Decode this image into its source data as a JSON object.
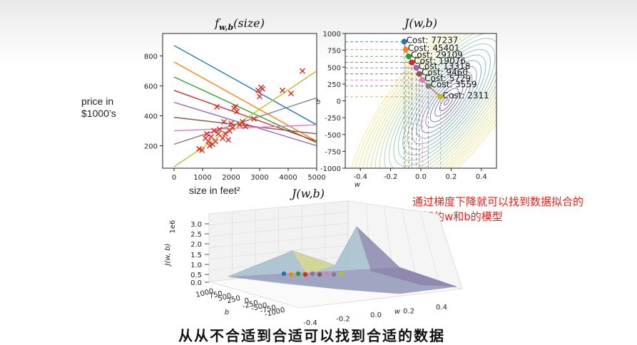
{
  "side_label": {
    "line1": "price in",
    "line2": "$1000’s"
  },
  "left_xlabel": "size in feet²",
  "note": {
    "line1": "通过梯度下降就可以找到数据拟合的",
    "line2": "最好的w和b的模型"
  },
  "bottom_text": "从从不合适到合适可以找到合适的数据",
  "chart_data": [
    {
      "type": "scatter",
      "title": "f_{w,b}(size)",
      "xlabel": "size in feet²",
      "ylabel": "price in $1000’s",
      "xlim": [
        -400,
        5000
      ],
      "ylim": [
        50,
        950
      ],
      "xticks": [
        "0",
        "1000",
        "2000",
        "3000",
        "4000",
        "5000"
      ],
      "yticks": [
        "200",
        "400",
        "600",
        "800"
      ],
      "points": [
        {
          "x": 880,
          "y": 180
        },
        {
          "x": 980,
          "y": 170
        },
        {
          "x": 1100,
          "y": 250
        },
        {
          "x": 1150,
          "y": 280
        },
        {
          "x": 1200,
          "y": 230
        },
        {
          "x": 1250,
          "y": 200
        },
        {
          "x": 1300,
          "y": 260
        },
        {
          "x": 1350,
          "y": 210
        },
        {
          "x": 1400,
          "y": 300
        },
        {
          "x": 1450,
          "y": 230
        },
        {
          "x": 1500,
          "y": 460
        },
        {
          "x": 1550,
          "y": 280
        },
        {
          "x": 1600,
          "y": 310
        },
        {
          "x": 1700,
          "y": 250
        },
        {
          "x": 1750,
          "y": 360
        },
        {
          "x": 1800,
          "y": 280
        },
        {
          "x": 1900,
          "y": 240
        },
        {
          "x": 1950,
          "y": 300
        },
        {
          "x": 2000,
          "y": 350
        },
        {
          "x": 2050,
          "y": 320
        },
        {
          "x": 2100,
          "y": 450
        },
        {
          "x": 2150,
          "y": 460
        },
        {
          "x": 2200,
          "y": 430
        },
        {
          "x": 2300,
          "y": 340
        },
        {
          "x": 2400,
          "y": 360
        },
        {
          "x": 2500,
          "y": 330
        },
        {
          "x": 2800,
          "y": 380
        },
        {
          "x": 2950,
          "y": 570
        },
        {
          "x": 3000,
          "y": 530
        },
        {
          "x": 3050,
          "y": 590
        },
        {
          "x": 3100,
          "y": 580
        },
        {
          "x": 3800,
          "y": 570
        },
        {
          "x": 4100,
          "y": 550
        },
        {
          "x": 4500,
          "y": 700
        }
      ],
      "lines": [
        {
          "color": "#1f77b4",
          "y0": 870,
          "y5000": 340
        },
        {
          "color": "#ff7f0e",
          "y0": 760,
          "y5000": 230
        },
        {
          "color": "#2ca02c",
          "y0": 660,
          "y5000": 220
        },
        {
          "color": "#d62728",
          "y0": 570,
          "y5000": 230
        },
        {
          "color": "#9467bd",
          "y0": 490,
          "y5000": 200
        },
        {
          "color": "#8c564b",
          "y0": 390,
          "y5000": 280
        },
        {
          "color": "#e377c2",
          "y0": 300,
          "y5000": 340
        },
        {
          "color": "#7f7f7f",
          "y0": 210,
          "y5000": 520
        },
        {
          "color": "#bcbd22",
          "y0": 60,
          "y5000": 700
        }
      ]
    },
    {
      "type": "contour",
      "title": "J(w,b)",
      "xlabel": "w",
      "ylabel": "b",
      "xlim": [
        -0.5,
        0.5
      ],
      "ylim": [
        -1000,
        1000
      ],
      "xticks": [
        "-0.4",
        "-0.2",
        "0.0",
        "0.2",
        "0.4"
      ],
      "yticks": [
        "1000",
        "750",
        "500",
        "250",
        "0",
        "-250",
        "-500",
        "-750",
        "-1000"
      ],
      "minimum": {
        "w": 0.17,
        "b": -20
      },
      "path": [
        {
          "w": -0.11,
          "b": 880,
          "label": "Cost: 77237",
          "color": "#1f77b4"
        },
        {
          "w": -0.1,
          "b": 760,
          "label": "Cost: 45401",
          "color": "#ff7f0e"
        },
        {
          "w": -0.08,
          "b": 660,
          "label": "Cost: 29109",
          "color": "#2ca02c"
        },
        {
          "w": -0.06,
          "b": 570,
          "label": "Cost: 19076",
          "color": "#d62728"
        },
        {
          "w": -0.03,
          "b": 490,
          "label": "Cost: 13318",
          "color": "#9467bd"
        },
        {
          "w": -0.01,
          "b": 400,
          "label": "Cost: 9460",
          "color": "#8c564b"
        },
        {
          "w": 0.01,
          "b": 310,
          "label": "Cost: 5729",
          "color": "#e377c2"
        },
        {
          "w": 0.05,
          "b": 220,
          "label": "Cost: 3559",
          "color": "#7f7f7f"
        },
        {
          "w": 0.13,
          "b": 60,
          "label": "Cost: 2311",
          "color": "#bcbd22"
        }
      ]
    },
    {
      "type": "surface",
      "title": "J(w,b)",
      "xlabel": "w",
      "ylabel": "b",
      "zlabel": "J(w, b)",
      "zscale_label": "1e6",
      "zticks": [
        "3.0",
        "2.5",
        "2.0",
        "1.5",
        "1.0",
        "0.5",
        "0.0"
      ],
      "wticks": [
        "-0.4",
        "-0.2",
        "0.0",
        "0.2",
        "0.4"
      ],
      "bticks": [
        "1000",
        "750",
        "500",
        "250",
        "0",
        "-250",
        "-500",
        "-750",
        "-1000"
      ]
    }
  ]
}
